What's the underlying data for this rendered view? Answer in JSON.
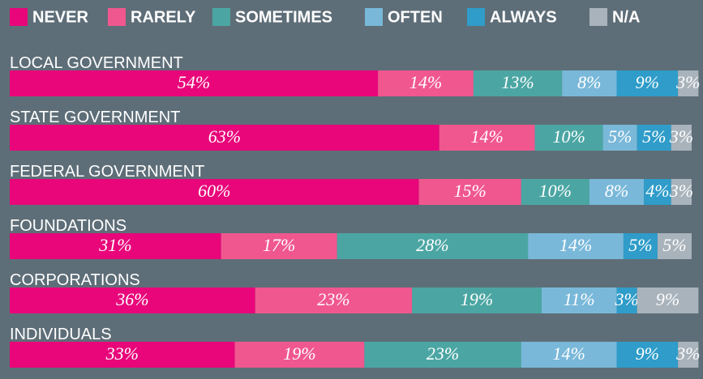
{
  "chart_data": {
    "type": "stacked-bar",
    "categories": [
      "LOCAL GOVERNMENT",
      "STATE GOVERNMENT",
      "FEDERAL GOVERNMENT",
      "FOUNDATIONS",
      "CORPORATIONS",
      "INDIVIDUALS"
    ],
    "series": [
      {
        "name": "NEVER",
        "color": "#e8067a",
        "values": [
          54,
          63,
          60,
          31,
          36,
          33
        ],
        "value_labels": [
          "54%",
          "63%",
          "60%",
          "31%",
          "36%",
          "33%"
        ]
      },
      {
        "name": "RARELY",
        "color": "#f0578f",
        "values": [
          14,
          14,
          15,
          17,
          23,
          19
        ],
        "value_labels": [
          "14%",
          "14%",
          "15%",
          "17%",
          "23%",
          "19%"
        ]
      },
      {
        "name": "SOMETIMES",
        "color": "#4ba6a3",
        "values": [
          13,
          10,
          10,
          28,
          19,
          23
        ],
        "value_labels": [
          "13%",
          "10%",
          "10%",
          "28%",
          "19%",
          "23%"
        ]
      },
      {
        "name": "OFTEN",
        "color": "#79b8d9",
        "values": [
          8,
          5,
          8,
          14,
          11,
          14
        ],
        "value_labels": [
          "8%",
          "5%",
          "8%",
          "14%",
          "11%",
          "14%"
        ]
      },
      {
        "name": "ALWAYS",
        "color": "#2f9cc9",
        "values": [
          9,
          5,
          4,
          5,
          3,
          9
        ],
        "value_labels": [
          "9%",
          "5%",
          "4%",
          "5%",
          "3%",
          "9%"
        ]
      },
      {
        "name": "N/A",
        "color": "#a9b3bb",
        "values": [
          3,
          3,
          3,
          5,
          9,
          3
        ],
        "value_labels": [
          "3%",
          "3%",
          "3%",
          "5%",
          "9%",
          "3%"
        ]
      }
    ]
  }
}
